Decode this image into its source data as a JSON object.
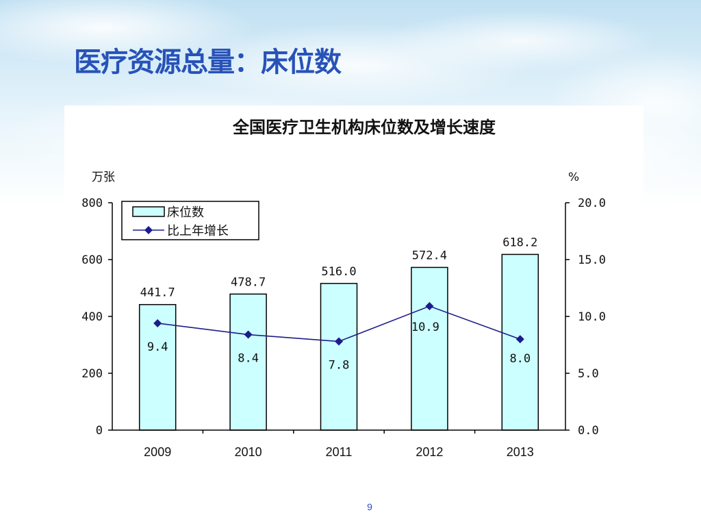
{
  "slide": {
    "title": "医疗资源总量：床位数",
    "page_number": "9"
  },
  "colors": {
    "title": "#2752b8",
    "bar_fill": "#ccffff",
    "bar_stroke": "#000000",
    "line": "#1c1c8c",
    "marker": "#1c1c8c"
  },
  "chart_data": {
    "type": "bar",
    "title": "全国医疗卫生机构床位数及增长速度",
    "categories": [
      "2009",
      "2010",
      "2011",
      "2012",
      "2013"
    ],
    "y_left_label": "万张",
    "y_right_label": "%",
    "ylim_left": [
      0,
      800
    ],
    "ylim_right": [
      0,
      20
    ],
    "y_left_ticks": [
      "0",
      "200",
      "400",
      "600",
      "800"
    ],
    "y_right_ticks": [
      "0.0",
      "5.0",
      "10.0",
      "15.0",
      "20.0"
    ],
    "legend_position": "top-left",
    "grid": false,
    "series": [
      {
        "name": "床位数",
        "type": "bar",
        "axis": "left",
        "values": [
          441.7,
          478.7,
          516.0,
          572.4,
          618.2
        ],
        "labels": [
          "441.7",
          "478.7",
          "516.0",
          "572.4",
          "618.2"
        ]
      },
      {
        "name": "比上年增长",
        "type": "line",
        "axis": "right",
        "values": [
          9.4,
          8.4,
          7.8,
          10.9,
          8.0
        ],
        "labels": [
          "9.4",
          "8.4",
          "7.8",
          "10.9",
          "8.0"
        ]
      }
    ]
  }
}
